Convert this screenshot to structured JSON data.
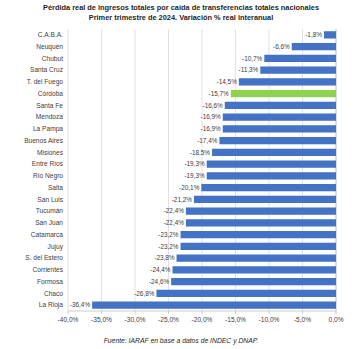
{
  "chart_data": {
    "type": "bar",
    "orientation": "horizontal",
    "title": "Pérdida real de ingresos totales por caída de transferencias totales nacionales",
    "subtitle": "Primer trimestre de 2024. Variación % real interanual",
    "source": "Fuente: IARAF en base a datos de INDEC y DNAP.",
    "categories": [
      "C.A.B.A.",
      "Neuquén",
      "Chubut",
      "Santa Cruz",
      "T. del Fuego",
      "Córdoba",
      "Santa Fe",
      "Mendoza",
      "La Pampa",
      "Buenos Aires",
      "Misiones",
      "Entre Ríos",
      "Río Negro",
      "Salta",
      "San Luis",
      "Tucumán",
      "San Juan",
      "Catamarca",
      "Jujuy",
      "S. del Estero",
      "Corrientes",
      "Formosa",
      "Chaco",
      "La Rioja"
    ],
    "values": [
      -1.8,
      -6.6,
      -10.7,
      -11.3,
      -14.5,
      -15.7,
      -16.6,
      -16.9,
      -16.9,
      -17.4,
      -18.5,
      -19.3,
      -19.3,
      -20.1,
      -21.2,
      -22.4,
      -22.4,
      -23.2,
      -23.2,
      -23.8,
      -24.4,
      -24.6,
      -26.8,
      -36.4
    ],
    "value_labels": [
      "-1,8%",
      "-6,6%",
      "-10,7%",
      "-11,3%",
      "-14,5%",
      "-15,7%",
      "-16,6%",
      "-16,9%",
      "-16,9%",
      "-17,4%",
      "-18,5%",
      "-19,3%",
      "-19,3%",
      "-20,1%",
      "-21,2%",
      "-22,4%",
      "-22,4%",
      "-23,2%",
      "-23,2%",
      "-23,8%",
      "-24,4%",
      "-24,6%",
      "-26,8%",
      "-36,4%"
    ],
    "colors": [
      "#4472c4",
      "#4472c4",
      "#4472c4",
      "#4472c4",
      "#4472c4",
      "#92d050",
      "#4472c4",
      "#4472c4",
      "#4472c4",
      "#4472c4",
      "#4472c4",
      "#4472c4",
      "#4472c4",
      "#4472c4",
      "#4472c4",
      "#4472c4",
      "#4472c4",
      "#4472c4",
      "#4472c4",
      "#4472c4",
      "#4472c4",
      "#4472c4",
      "#4472c4",
      "#4472c4"
    ],
    "xlim": [
      -40,
      0
    ],
    "xticks": [
      {
        "value": -40,
        "label": "-40,0%"
      },
      {
        "value": -35,
        "label": "-35,0%"
      },
      {
        "value": -30,
        "label": "-30,0%"
      },
      {
        "value": -25,
        "label": "-25,0%"
      },
      {
        "value": -20,
        "label": "-20,0%"
      },
      {
        "value": -15,
        "label": "-15,0%"
      },
      {
        "value": -10,
        "label": "-10,0%"
      },
      {
        "value": -5,
        "label": "-5,0%"
      },
      {
        "value": 0,
        "label": "0,0%"
      }
    ],
    "grid": true,
    "data_labels": true
  }
}
